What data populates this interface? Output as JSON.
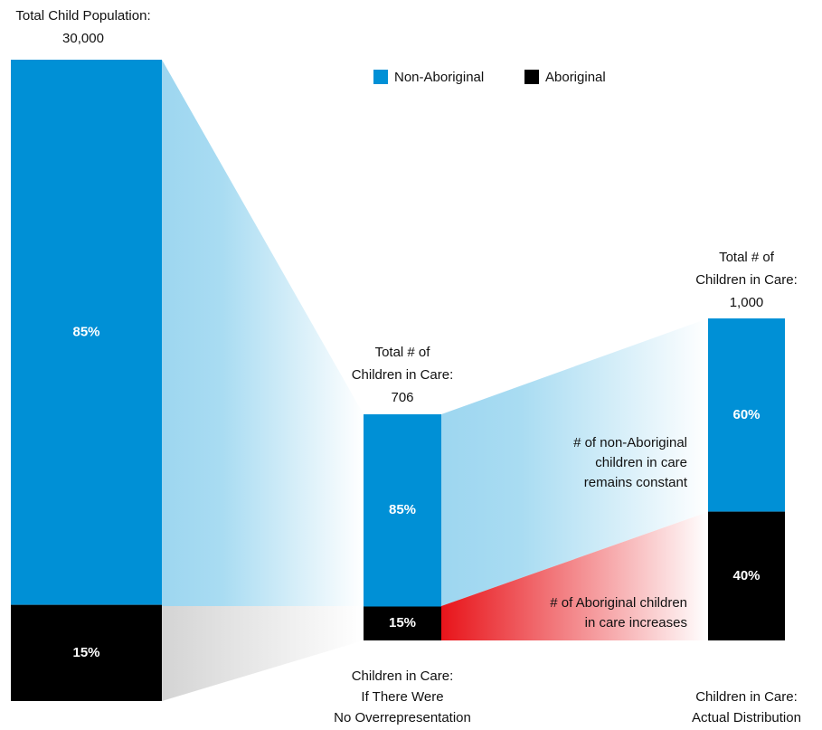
{
  "legend": [
    {
      "label": "Non-Aboriginal",
      "color": "#0090d6"
    },
    {
      "label": "Aboriginal",
      "color": "#000000"
    }
  ],
  "columns": [
    {
      "title": [
        "Total Child Population:",
        "30,000"
      ],
      "segments": [
        {
          "value": 85,
          "label": "85%"
        },
        {
          "value": 15,
          "label": "15%"
        }
      ],
      "caption": []
    },
    {
      "title": [
        "Total # of",
        "Children in Care:",
        "706"
      ],
      "segments": [
        {
          "value": 85,
          "label": "85%"
        },
        {
          "value": 15,
          "label": "15%"
        }
      ],
      "caption": [
        "Children in Care:",
        "If There Were",
        "No Overrepresentation"
      ]
    },
    {
      "title": [
        "Total # of",
        "Children in Care:",
        "1,000"
      ],
      "segments": [
        {
          "value": 60,
          "label": "60%"
        },
        {
          "value": 40,
          "label": "40%"
        }
      ],
      "caption": [
        "Children in Care:",
        "Actual Distribution"
      ]
    }
  ],
  "annotations": [
    {
      "lines": [
        "# of non-Aboriginal",
        "children in care",
        "remains constant"
      ]
    },
    {
      "lines": [
        "# of Aboriginal children",
        "in care increases"
      ]
    }
  ]
}
